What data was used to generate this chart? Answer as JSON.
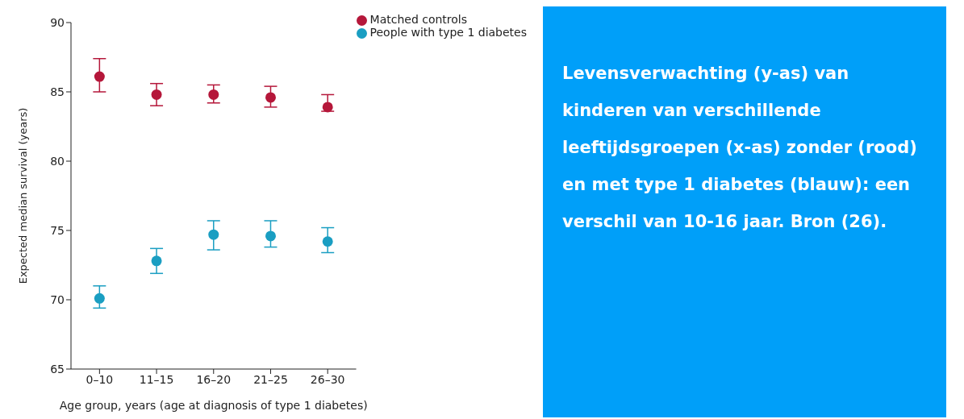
{
  "chart_data": [
    {
      "type": "scatter",
      "xlabel": "Age group, years (age at diagnosis of type 1 diabetes)",
      "ylabel": "Expected median survival (years)",
      "categories": [
        "0–10",
        "11–15",
        "16–20",
        "21–25",
        "26–30"
      ],
      "series": [
        {
          "name": "Matched controls",
          "color": "#b5173a",
          "values": [
            86.1,
            84.8,
            84.8,
            84.6,
            83.9
          ],
          "errors": [
            [
              85.0,
              87.4
            ],
            [
              84.0,
              85.6
            ],
            [
              84.2,
              85.5
            ],
            [
              83.9,
              85.4
            ],
            [
              83.6,
              84.8
            ]
          ]
        },
        {
          "name": "People with type 1 diabetes",
          "color": "#1a9ec2",
          "values": [
            70.1,
            72.8,
            74.7,
            74.6,
            74.2
          ],
          "errors": [
            [
              69.4,
              71.0
            ],
            [
              71.9,
              73.7
            ],
            [
              73.6,
              75.7
            ],
            [
              73.8,
              75.7
            ],
            [
              73.4,
              75.2
            ]
          ]
        }
      ],
      "ylim": [
        65,
        90
      ],
      "yticks": [
        65,
        70,
        75,
        80,
        85,
        90
      ],
      "grid": false,
      "legend": "top right",
      "marker": "circle"
    },
    {
      "type": "other",
      "annotations": [
        "Levensverwachting (y-as) van kinderen van verschillende leeftijdsgroepen (x-as) zonder (rood) en met type 1 diabetes (blauw): een verschil van 10-16 jaar. Bron (26)."
      ]
    }
  ]
}
